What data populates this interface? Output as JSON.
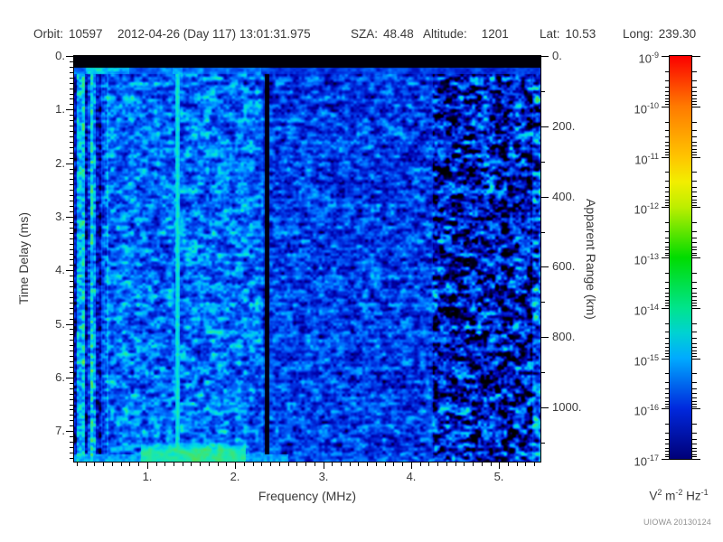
{
  "header": {
    "fields": [
      {
        "label": "Orbit:",
        "value": "10597"
      },
      {
        "label": "",
        "value": "2012-04-26 (Day 117) 13:01:31.975"
      },
      {
        "label": "SZA:",
        "value": "48.48"
      },
      {
        "label": "Altitude:",
        "value": "1201"
      },
      {
        "label": "Lat:",
        "value": "10.53"
      },
      {
        "label": "Long:",
        "value": "239.30"
      }
    ]
  },
  "chart_data": {
    "type": "heatmap",
    "description": "Radar sounder ionogram: received spectral density vs frequency and time delay; mostly blue noise, brighter streaky columns below 0.6 MHz, bright cyan stripe near 1.35 MHz, dark gap near 2.35 MHz, black band at zero delay with cyan surface row beneath, green ionospheric echo patch 0.95-2.1 MHz near maximum delay, noise fading to black patches above 4.2 MHz",
    "xlabel": "Frequency (MHz)",
    "ylabel_left": "Time Delay (ms)",
    "ylabel_right": "Apparent Range (km)",
    "x_axis": {
      "range_mhz": [
        0.17,
        5.47
      ],
      "major_ticks": [
        1,
        2,
        3,
        4,
        5
      ],
      "tick_labels": [
        "1.",
        "2.",
        "3.",
        "4.",
        "5."
      ],
      "minor_step": 0.1
    },
    "y_axis_left": {
      "range_ms": [
        0,
        7.57
      ],
      "major_ticks": [
        0,
        1,
        2,
        3,
        4,
        5,
        6,
        7
      ],
      "tick_labels": [
        "0.",
        "1.",
        "2.",
        "3.",
        "4.",
        "5.",
        "6.",
        "7."
      ],
      "minor_step": 0.1
    },
    "y_axis_right": {
      "range_km": [
        0,
        1154
      ],
      "major_ticks": [
        0,
        200,
        400,
        600,
        800,
        1000
      ],
      "tick_labels": [
        "0.",
        "200.",
        "400.",
        "600.",
        "800.",
        "1000."
      ],
      "minor_step": 100
    },
    "colorbar": {
      "scale": "log",
      "range": [
        1e-17,
        1e-09
      ],
      "tick_exponents": [
        -9,
        -10,
        -11,
        -12,
        -13,
        -14,
        -15,
        -16,
        -17
      ],
      "unit_segments": [
        [
          "V",
          ""
        ],
        [
          "2",
          "sup"
        ],
        [
          " m",
          ""
        ],
        [
          "-2",
          "sup"
        ],
        [
          " Hz",
          ""
        ],
        [
          "-1",
          "sup"
        ]
      ],
      "gradient_stops": [
        [
          0.0,
          "#fb0000"
        ],
        [
          0.125,
          "#ff7a00"
        ],
        [
          0.25,
          "#ffc400"
        ],
        [
          0.3125,
          "#f2ee00"
        ],
        [
          0.375,
          "#bdee00"
        ],
        [
          0.5,
          "#00dc00"
        ],
        [
          0.625,
          "#00e48c"
        ],
        [
          0.6875,
          "#00d2d2"
        ],
        [
          0.75,
          "#00aaff"
        ],
        [
          0.875,
          "#0028dd"
        ],
        [
          1.0,
          "#000078"
        ]
      ]
    },
    "render": {
      "seed": 20130124,
      "palette": [
        [
          0.0,
          "#000000"
        ],
        [
          0.1,
          "#000026"
        ],
        [
          0.24,
          "#0000aa"
        ],
        [
          0.38,
          "#0030e0"
        ],
        [
          0.52,
          "#0070ff"
        ],
        [
          0.63,
          "#00b0ff"
        ],
        [
          0.73,
          "#00e0e0"
        ],
        [
          0.81,
          "#22e8a0"
        ],
        [
          0.9,
          "#55e050"
        ],
        [
          1.0,
          "#aaf040"
        ]
      ],
      "regions": [
        {
          "f_max": 0.56,
          "type": "streaks",
          "base": 0.18,
          "amp": 0.62
        },
        {
          "f_max": 2.32,
          "type": "noise",
          "base": 0.15,
          "amp": 0.7
        },
        {
          "f_max": 4.25,
          "type": "noise",
          "base": 0.09,
          "amp": 0.64
        },
        {
          "f_max": 9.0,
          "type": "noise",
          "base": -0.24,
          "amp": 1.12
        }
      ],
      "features": {
        "top_band": {
          "t_max": 0.22,
          "value": 0.02
        },
        "surface_row": {
          "t_max": 0.33,
          "base": 0.52,
          "amp": 0.34,
          "green_f_max": 0.8,
          "green_boost": 0.2
        },
        "stripes": [
          {
            "mhz": 1.345,
            "halfwidth": 0.028,
            "level": 0.78
          }
        ],
        "dark_lines": [
          {
            "mhz": 2.36,
            "halfwidth": 0.026,
            "factor": 0.12
          }
        ],
        "echo_blob": {
          "f_min": 0.93,
          "f_max": 2.12,
          "t_min": 7.2,
          "peak_f": 1.6,
          "level": 0.84,
          "falloff": 0.1
        },
        "bottom_row": {
          "t_min": 7.44,
          "f_max": 2.6,
          "level": 0.6
        },
        "right_edge_boost": {
          "f_min": 5.38,
          "boost": 0.13
        }
      }
    }
  },
  "footer": {
    "watermark": "UIOWA 20130124"
  }
}
